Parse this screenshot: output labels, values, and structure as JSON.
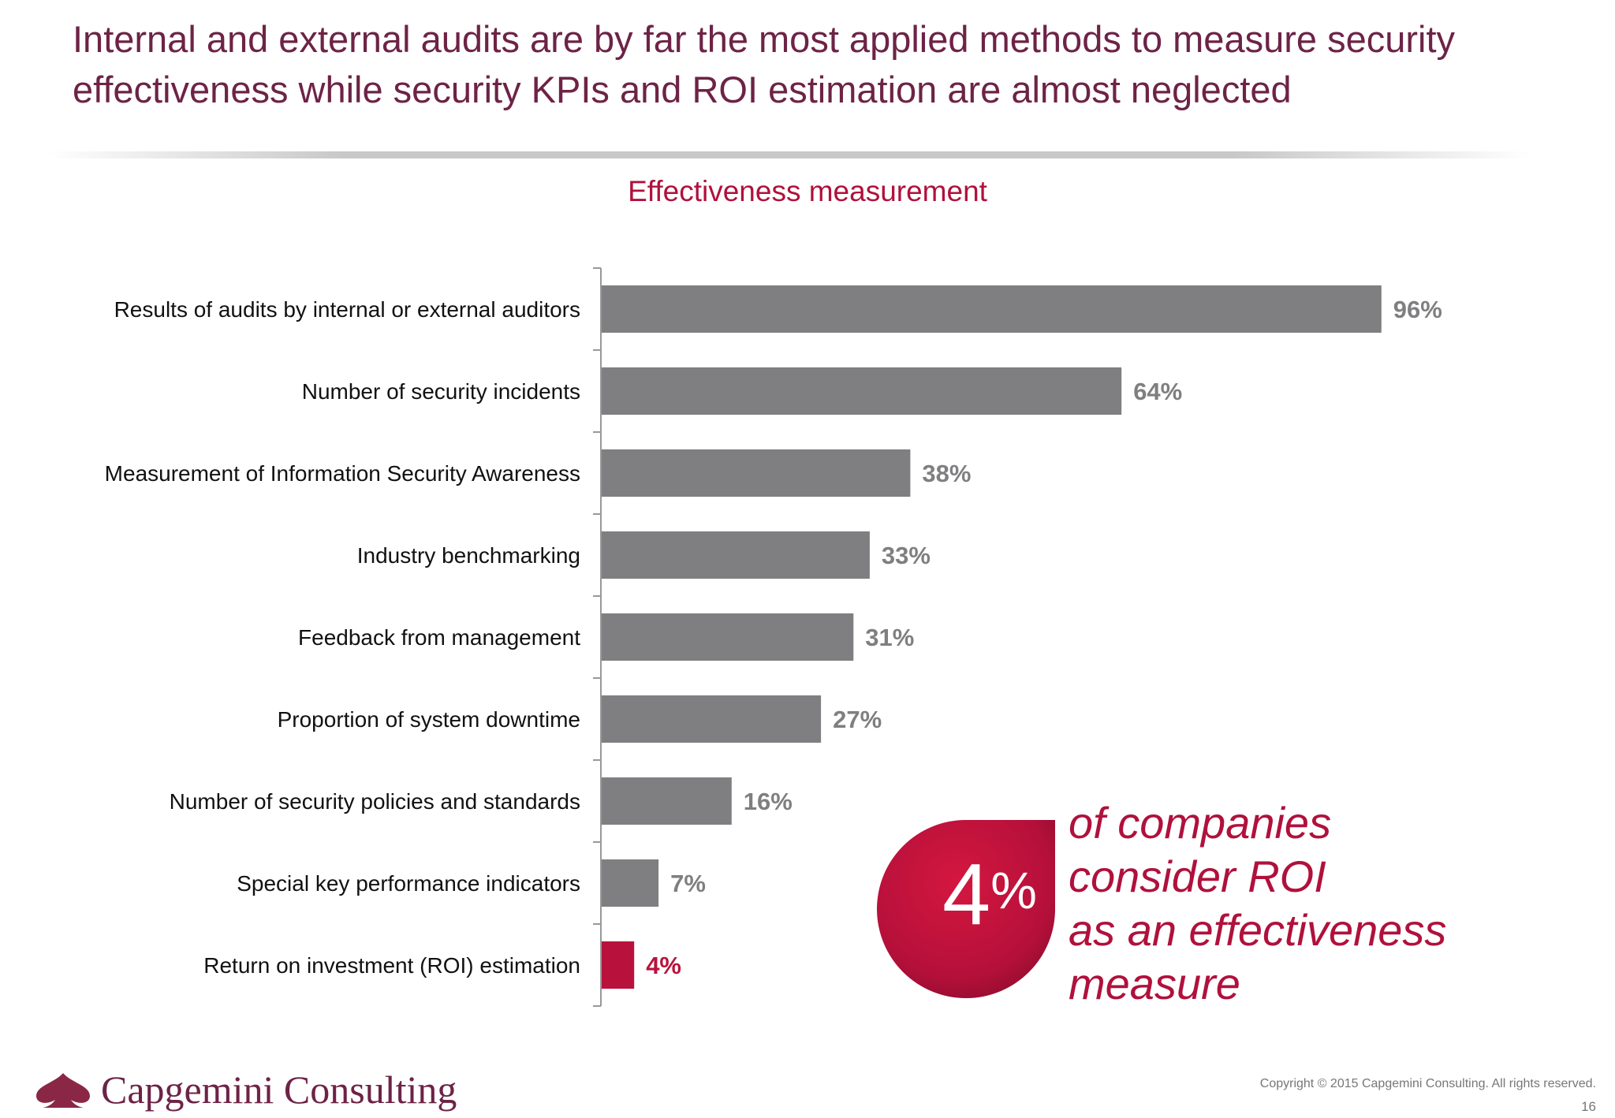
{
  "headline": "Internal and external audits are by far the most applied methods to measure security effectiveness while security KPIs and ROI estimation are almost neglected",
  "chart_data": {
    "type": "bar",
    "orientation": "horizontal",
    "title": "Effectiveness measurement",
    "categories": [
      "Results of audits by internal or external auditors",
      "Number of security incidents",
      "Measurement of Information Security Awareness",
      "Industry benchmarking",
      "Feedback from management",
      "Proportion of system downtime",
      "Number of security policies and standards",
      "Special key performance indicators",
      "Return on investment (ROI) estimation"
    ],
    "values": [
      96,
      64,
      38,
      33,
      31,
      27,
      16,
      7,
      4
    ],
    "value_labels": [
      "96%",
      "64%",
      "38%",
      "33%",
      "31%",
      "27%",
      "16%",
      "7%",
      "4%"
    ],
    "unit": "%",
    "xlim": [
      0,
      100
    ],
    "highlight_index": 8,
    "colors": {
      "default_bar": "#7f7e80",
      "highlight_bar": "#b8123c",
      "default_label": "#7f7e80",
      "highlight_label": "#b8123c"
    },
    "grid": false,
    "legend": "none"
  },
  "callout": {
    "number": "4",
    "unit": "%",
    "lines": [
      "of companies",
      "consider ROI",
      "as an effectiveness",
      "measure"
    ],
    "color": "#b0113c"
  },
  "footer": {
    "logo": "Capgemini Consulting",
    "copyright": "Copyright © 2015 Capgemini Consulting. All rights reserved.",
    "page": "16"
  }
}
